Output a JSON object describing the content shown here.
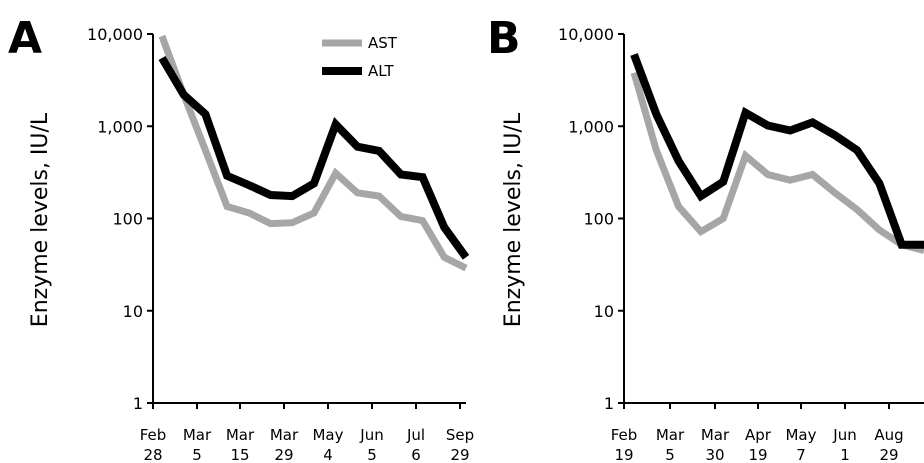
{
  "chart_data": [
    {
      "type": "line",
      "panel_label": "A",
      "ylabel": "Enzyme levels, IU/L",
      "yscale": "log",
      "ylim": [
        1,
        10000
      ],
      "y_ticks": [
        "1",
        "10",
        "100",
        "1,000",
        "10,000"
      ],
      "x_tick_labels": [
        [
          "Feb",
          "28"
        ],
        [
          "Mar",
          "5"
        ],
        [
          "Mar",
          "15"
        ],
        [
          "Mar",
          "29"
        ],
        [
          "May",
          "4"
        ],
        [
          "Jun",
          "5"
        ],
        [
          "Jul",
          "6"
        ],
        [
          "Sep",
          "29"
        ]
      ],
      "legend": {
        "placement": "top-center"
      },
      "series": [
        {
          "name": "AST",
          "color": "#a6a6a6",
          "values": [
            9500,
            2200,
            550,
            135,
            115,
            88,
            90,
            115,
            310,
            190,
            175,
            105,
            95,
            38,
            29
          ]
        },
        {
          "name": "ALT",
          "color": "#000000",
          "values": [
            5500,
            2200,
            1350,
            290,
            230,
            180,
            175,
            240,
            1050,
            600,
            540,
            300,
            280,
            80,
            38
          ]
        }
      ]
    },
    {
      "type": "line",
      "panel_label": "B",
      "ylabel": "Enzyme levels, IU/L",
      "yscale": "log",
      "ylim": [
        1,
        10000
      ],
      "y_ticks": [
        "1",
        "10",
        "100",
        "1,000",
        "10,000"
      ],
      "x_tick_labels": [
        [
          "Feb",
          "19"
        ],
        [
          "Mar",
          "5"
        ],
        [
          "Mar",
          "30"
        ],
        [
          "Apr",
          "19"
        ],
        [
          "May",
          "7"
        ],
        [
          "Jun",
          "1"
        ],
        [
          "Aug",
          "29"
        ]
      ],
      "series": [
        {
          "name": "AST",
          "color": "#a6a6a6",
          "values": [
            3800,
            550,
            135,
            72,
            100,
            480,
            300,
            260,
            300,
            190,
            125,
            75,
            52,
            45
          ]
        },
        {
          "name": "ALT",
          "color": "#000000",
          "values": [
            6000,
            1350,
            420,
            175,
            250,
            1400,
            1020,
            900,
            1100,
            800,
            550,
            240,
            52,
            52
          ]
        }
      ]
    }
  ]
}
